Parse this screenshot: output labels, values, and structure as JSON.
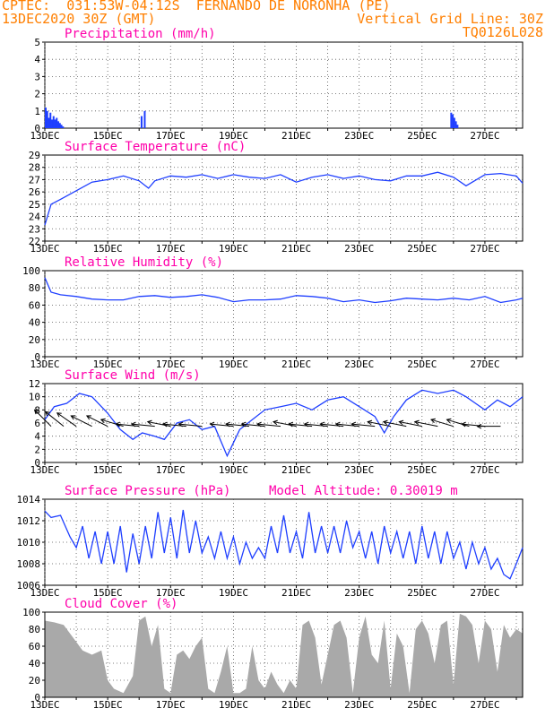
{
  "header": {
    "line1": "CPTEC:  031:53W-04:12S  FERNANDO DE NORONHA (PE)",
    "line2": "13DEC2020 30Z (GMT)",
    "grid_note": "Vertical Grid Line: 30Z",
    "model_id": "TQ0126L028"
  },
  "colors": {
    "header": "#ff7f00",
    "title": "#ff00aa",
    "series": "#1f3fff",
    "cloud": "#a9a9a9",
    "grid": "#555555"
  },
  "x_ticks": [
    "13DEC",
    "15DEC",
    "17DEC",
    "19DEC",
    "21DEC",
    "23DEC",
    "25DEC",
    "27DEC"
  ],
  "x_range_days": [
    13,
    28.2
  ],
  "chart_data": [
    {
      "type": "bar",
      "title": "Precipitation (mm/h)",
      "ylim": [
        0,
        5
      ],
      "yticks": [
        "0",
        "1",
        "2",
        "3",
        "4",
        "5"
      ],
      "grid": true,
      "x": [
        13.0,
        13.05,
        13.1,
        13.15,
        13.2,
        13.25,
        13.3,
        13.35,
        13.4,
        13.45,
        13.5,
        13.55,
        16.05,
        16.15,
        25.9,
        25.95,
        26.0,
        26.05,
        26.1
      ],
      "values": [
        1.2,
        1.0,
        0.6,
        0.9,
        0.5,
        0.7,
        0.5,
        0.6,
        0.4,
        0.3,
        0.2,
        0.1,
        0.7,
        1.0,
        0.9,
        0.8,
        0.6,
        0.4,
        0.2
      ]
    },
    {
      "type": "line",
      "title": "Surface Temperature (nC)",
      "ylim": [
        22,
        29
      ],
      "yticks": [
        "22",
        "23",
        "24",
        "25",
        "26",
        "27",
        "28",
        "29"
      ],
      "grid": true,
      "x": [
        13.0,
        13.2,
        13.5,
        14.0,
        14.5,
        15.0,
        15.5,
        16.0,
        16.3,
        16.5,
        17.0,
        17.5,
        18.0,
        18.5,
        19.0,
        19.5,
        20.0,
        20.5,
        21.0,
        21.5,
        22.0,
        22.5,
        23.0,
        23.5,
        24.0,
        24.5,
        25.0,
        25.5,
        26.0,
        26.4,
        26.8,
        27.0,
        27.5,
        28.0,
        28.2
      ],
      "values": [
        23.3,
        25.0,
        25.4,
        26.1,
        26.8,
        27.0,
        27.3,
        26.9,
        26.3,
        26.9,
        27.3,
        27.2,
        27.4,
        27.1,
        27.4,
        27.2,
        27.1,
        27.4,
        26.8,
        27.2,
        27.4,
        27.1,
        27.3,
        27.0,
        26.9,
        27.3,
        27.3,
        27.6,
        27.2,
        26.5,
        27.1,
        27.4,
        27.5,
        27.3,
        26.7
      ]
    },
    {
      "type": "line",
      "title": "Relative Humidity (%)",
      "ylim": [
        0,
        100
      ],
      "yticks": [
        "0",
        "20",
        "40",
        "60",
        "80",
        "100"
      ],
      "grid": true,
      "x": [
        13.0,
        13.2,
        13.5,
        14.0,
        14.5,
        15.0,
        15.5,
        16.0,
        16.5,
        17.0,
        17.5,
        18.0,
        18.5,
        19.0,
        19.5,
        20.0,
        20.5,
        21.0,
        21.5,
        22.0,
        22.5,
        23.0,
        23.5,
        24.0,
        24.5,
        25.0,
        25.5,
        26.0,
        26.5,
        27.0,
        27.5,
        28.0,
        28.2
      ],
      "values": [
        92,
        75,
        72,
        70,
        67,
        66,
        66,
        70,
        71,
        69,
        70,
        72,
        69,
        64,
        66,
        66,
        67,
        71,
        70,
        68,
        64,
        66,
        63,
        65,
        68,
        67,
        66,
        68,
        66,
        70,
        63,
        66,
        68
      ]
    },
    {
      "type": "line",
      "title": "Surface Wind (m/s)",
      "ylim": [
        0,
        12
      ],
      "yticks": [
        "0",
        "2",
        "4",
        "6",
        "8",
        "10",
        "12"
      ],
      "grid": true,
      "x": [
        13.0,
        13.3,
        13.7,
        14.1,
        14.5,
        15.0,
        15.4,
        15.8,
        16.1,
        16.5,
        16.8,
        17.2,
        17.6,
        18.0,
        18.4,
        18.8,
        19.2,
        19.6,
        20.0,
        20.5,
        21.0,
        21.5,
        22.0,
        22.5,
        23.0,
        23.5,
        23.8,
        24.1,
        24.5,
        25.0,
        25.5,
        26.0,
        26.4,
        26.7,
        27.0,
        27.4,
        27.8,
        28.2
      ],
      "values": [
        6.5,
        8.5,
        9.0,
        10.5,
        10.0,
        7.5,
        5.0,
        3.5,
        4.5,
        4.0,
        3.5,
        6.0,
        6.5,
        5.0,
        5.5,
        1.0,
        5.0,
        6.5,
        8.0,
        8.5,
        9.0,
        8.0,
        9.5,
        10.0,
        8.5,
        7.0,
        4.5,
        7.0,
        9.5,
        11.0,
        10.5,
        11.0,
        10.0,
        9.0,
        8.0,
        9.5,
        8.5,
        10.0
      ],
      "arrows": [
        {
          "x": 13.2,
          "u": -1,
          "v": 1
        },
        {
          "x": 13.6,
          "u": -1,
          "v": 0.8
        },
        {
          "x": 14.0,
          "u": -1,
          "v": 0.7
        },
        {
          "x": 14.5,
          "u": -1,
          "v": 0.5
        },
        {
          "x": 15.0,
          "u": -1,
          "v": 0.5
        },
        {
          "x": 15.5,
          "u": -1,
          "v": 0.3
        },
        {
          "x": 16.0,
          "u": -1,
          "v": 0.1
        },
        {
          "x": 16.5,
          "u": -1,
          "v": 0.1
        },
        {
          "x": 17.0,
          "u": -1,
          "v": 0.2
        },
        {
          "x": 17.5,
          "u": -1,
          "v": 0.1
        },
        {
          "x": 18.0,
          "u": -1,
          "v": 0.1
        },
        {
          "x": 19.0,
          "u": -1,
          "v": 0.1
        },
        {
          "x": 19.5,
          "u": -1,
          "v": 0.1
        },
        {
          "x": 20.0,
          "u": -1,
          "v": 0.1
        },
        {
          "x": 20.5,
          "u": -1,
          "v": 0.1
        },
        {
          "x": 21.0,
          "u": -1,
          "v": 0.2
        },
        {
          "x": 21.5,
          "u": -1,
          "v": 0.1
        },
        {
          "x": 22.0,
          "u": -1,
          "v": 0.1
        },
        {
          "x": 22.5,
          "u": -1,
          "v": 0.1
        },
        {
          "x": 23.0,
          "u": -1,
          "v": 0.1
        },
        {
          "x": 23.5,
          "u": -1,
          "v": 0.1
        },
        {
          "x": 24.0,
          "u": -1,
          "v": 0.2
        },
        {
          "x": 24.5,
          "u": -1,
          "v": 0.2
        },
        {
          "x": 25.0,
          "u": -1,
          "v": 0.2
        },
        {
          "x": 25.5,
          "u": -1,
          "v": 0.2
        },
        {
          "x": 26.0,
          "u": -1,
          "v": 0.3
        },
        {
          "x": 26.5,
          "u": -1,
          "v": 0.3
        },
        {
          "x": 27.0,
          "u": -1,
          "v": 0.1
        },
        {
          "x": 27.5,
          "u": -1,
          "v": 0.0
        }
      ]
    },
    {
      "type": "line",
      "title": "Surface Pressure (hPa)",
      "subtitle": "Model Altitude: 0.30019 m",
      "ylim": [
        1006,
        1014
      ],
      "yticks": [
        "1006",
        "1008",
        "1010",
        "1012",
        "1014"
      ],
      "grid": true,
      "x": [
        13.0,
        13.2,
        13.5,
        13.8,
        14.0,
        14.2,
        14.4,
        14.6,
        14.8,
        15.0,
        15.2,
        15.4,
        15.6,
        15.8,
        16.0,
        16.2,
        16.4,
        16.6,
        16.8,
        17.0,
        17.2,
        17.4,
        17.6,
        17.8,
        18.0,
        18.2,
        18.4,
        18.6,
        18.8,
        19.0,
        19.2,
        19.4,
        19.6,
        19.8,
        20.0,
        20.2,
        20.4,
        20.6,
        20.8,
        21.0,
        21.2,
        21.4,
        21.6,
        21.8,
        22.0,
        22.2,
        22.4,
        22.6,
        22.8,
        23.0,
        23.2,
        23.4,
        23.6,
        23.8,
        24.0,
        24.2,
        24.4,
        24.6,
        24.8,
        25.0,
        25.2,
        25.4,
        25.6,
        25.8,
        26.0,
        26.2,
        26.4,
        26.6,
        26.8,
        27.0,
        27.2,
        27.4,
        27.6,
        27.8,
        28.0,
        28.2
      ],
      "values": [
        1012.9,
        1012.3,
        1012.5,
        1010.5,
        1009.5,
        1011.5,
        1008.5,
        1011.0,
        1008.0,
        1011.0,
        1008.0,
        1011.5,
        1007.2,
        1010.8,
        1008.0,
        1011.5,
        1008.5,
        1012.8,
        1009.0,
        1012.3,
        1008.5,
        1013.0,
        1009.0,
        1012.0,
        1009.0,
        1010.5,
        1008.5,
        1011.0,
        1008.5,
        1010.5,
        1008.0,
        1010.0,
        1008.5,
        1009.5,
        1008.5,
        1011.5,
        1009.0,
        1012.5,
        1009.0,
        1011.0,
        1008.5,
        1012.8,
        1009.0,
        1011.5,
        1009.0,
        1011.5,
        1009.0,
        1012.0,
        1009.5,
        1011.0,
        1008.5,
        1011.0,
        1008.0,
        1011.5,
        1009.0,
        1011.0,
        1008.5,
        1011.0,
        1008.0,
        1011.5,
        1008.5,
        1011.0,
        1008.0,
        1011.0,
        1008.5,
        1010.0,
        1007.5,
        1010.0,
        1008.0,
        1009.5,
        1007.5,
        1008.5,
        1007.0,
        1006.6,
        1008.0,
        1009.5
      ]
    },
    {
      "type": "area",
      "title": "Cloud Cover (%)",
      "ylim": [
        0,
        100
      ],
      "yticks": [
        "0",
        "20",
        "40",
        "60",
        "80",
        "100"
      ],
      "grid": true,
      "x": [
        13.0,
        13.3,
        13.6,
        13.9,
        14.2,
        14.5,
        14.8,
        15.0,
        15.2,
        15.5,
        15.8,
        16.0,
        16.2,
        16.4,
        16.6,
        16.8,
        17.0,
        17.2,
        17.4,
        17.6,
        17.8,
        18.0,
        18.2,
        18.4,
        18.6,
        18.8,
        19.0,
        19.2,
        19.4,
        19.6,
        19.8,
        20.0,
        20.2,
        20.4,
        20.6,
        20.8,
        21.0,
        21.2,
        21.4,
        21.6,
        21.8,
        22.0,
        22.2,
        22.4,
        22.6,
        22.8,
        23.0,
        23.2,
        23.4,
        23.6,
        23.8,
        24.0,
        24.2,
        24.4,
        24.6,
        24.8,
        25.0,
        25.2,
        25.4,
        25.6,
        25.8,
        26.0,
        26.2,
        26.4,
        26.6,
        26.8,
        27.0,
        27.2,
        27.4,
        27.6,
        27.8,
        28.0,
        28.2
      ],
      "values": [
        90,
        88,
        85,
        70,
        55,
        50,
        55,
        20,
        10,
        5,
        25,
        90,
        95,
        60,
        85,
        10,
        5,
        50,
        55,
        45,
        60,
        70,
        10,
        5,
        30,
        60,
        5,
        5,
        10,
        60,
        20,
        10,
        30,
        15,
        5,
        20,
        10,
        85,
        90,
        70,
        15,
        50,
        85,
        90,
        70,
        5,
        70,
        95,
        50,
        40,
        90,
        10,
        75,
        60,
        5,
        80,
        90,
        75,
        40,
        85,
        90,
        15,
        98,
        95,
        85,
        40,
        90,
        80,
        30,
        85,
        70,
        80,
        75
      ]
    }
  ]
}
